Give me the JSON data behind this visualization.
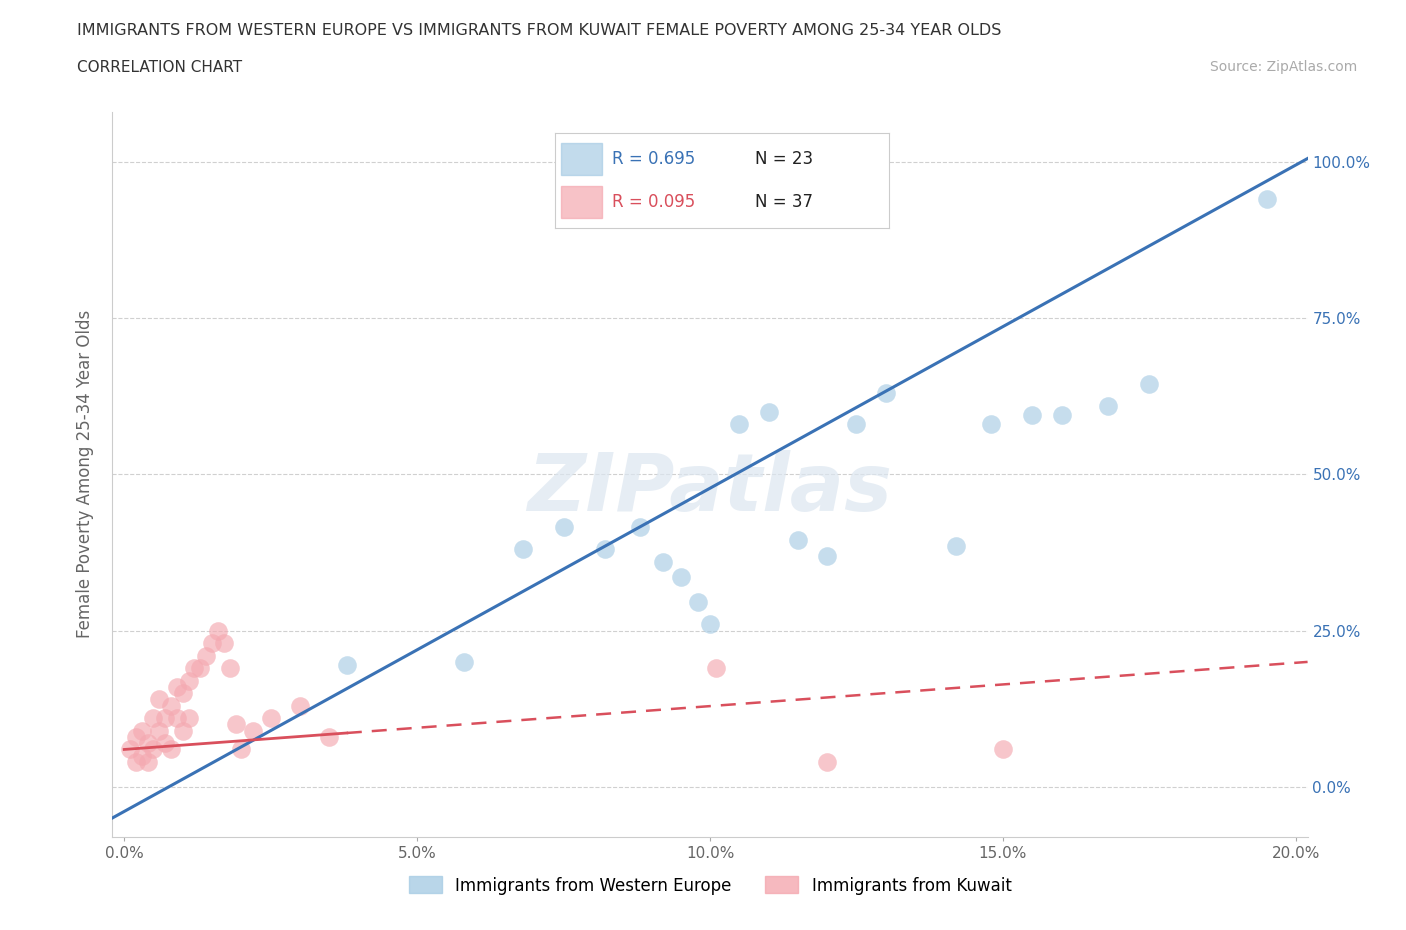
{
  "title": "IMMIGRANTS FROM WESTERN EUROPE VS IMMIGRANTS FROM KUWAIT FEMALE POVERTY AMONG 25-34 YEAR OLDS",
  "subtitle": "CORRELATION CHART",
  "source": "Source: ZipAtlas.com",
  "ylabel": "Female Poverty Among 25-34 Year Olds",
  "watermark": "ZIPatlas",
  "xlim": [
    -0.002,
    0.202
  ],
  "ylim": [
    -0.08,
    1.08
  ],
  "xticks": [
    0.0,
    0.05,
    0.1,
    0.15,
    0.2
  ],
  "xtick_labels": [
    "0.0%",
    "5.0%",
    "10.0%",
    "15.0%",
    "20.0%"
  ],
  "yticks": [
    0.0,
    0.25,
    0.5,
    0.75,
    1.0
  ],
  "ytick_labels": [
    "0.0%",
    "25.0%",
    "50.0%",
    "75.0%",
    "100.0%"
  ],
  "blue_R": 0.695,
  "blue_N": 23,
  "pink_R": 0.095,
  "pink_N": 37,
  "blue_color": "#a8cce4",
  "pink_color": "#f4a8b0",
  "blue_line_color": "#3a72b5",
  "pink_line_color": "#d94f5c",
  "legend_blue_label": "Immigrants from Western Europe",
  "legend_pink_label": "Immigrants from Kuwait",
  "blue_scatter_x": [
    0.038,
    0.058,
    0.068,
    0.075,
    0.082,
    0.088,
    0.092,
    0.095,
    0.098,
    0.1,
    0.105,
    0.11,
    0.115,
    0.12,
    0.125,
    0.13,
    0.142,
    0.148,
    0.155,
    0.16,
    0.168,
    0.175,
    0.195
  ],
  "blue_scatter_y": [
    0.195,
    0.2,
    0.38,
    0.415,
    0.38,
    0.415,
    0.36,
    0.335,
    0.295,
    0.26,
    0.58,
    0.6,
    0.395,
    0.37,
    0.58,
    0.63,
    0.385,
    0.58,
    0.595,
    0.595,
    0.61,
    0.645,
    0.94
  ],
  "pink_scatter_x": [
    0.001,
    0.002,
    0.002,
    0.003,
    0.003,
    0.004,
    0.004,
    0.005,
    0.005,
    0.006,
    0.006,
    0.007,
    0.007,
    0.008,
    0.008,
    0.009,
    0.009,
    0.01,
    0.01,
    0.011,
    0.011,
    0.012,
    0.013,
    0.014,
    0.015,
    0.016,
    0.017,
    0.018,
    0.019,
    0.02,
    0.022,
    0.025,
    0.03,
    0.035,
    0.101,
    0.12,
    0.15
  ],
  "pink_scatter_y": [
    0.06,
    0.04,
    0.08,
    0.05,
    0.09,
    0.04,
    0.07,
    0.06,
    0.11,
    0.09,
    0.14,
    0.07,
    0.11,
    0.06,
    0.13,
    0.11,
    0.16,
    0.09,
    0.15,
    0.11,
    0.17,
    0.19,
    0.19,
    0.21,
    0.23,
    0.25,
    0.23,
    0.19,
    0.1,
    0.06,
    0.09,
    0.11,
    0.13,
    0.08,
    0.19,
    0.04,
    0.06
  ],
  "background_color": "#ffffff",
  "grid_color": "#d0d0d0",
  "blue_line_x": [
    -0.005,
    0.202
  ],
  "blue_line_y": [
    -0.065,
    1.005
  ],
  "pink_line_x": [
    0.0,
    0.202
  ],
  "pink_line_y": [
    0.06,
    0.2
  ]
}
